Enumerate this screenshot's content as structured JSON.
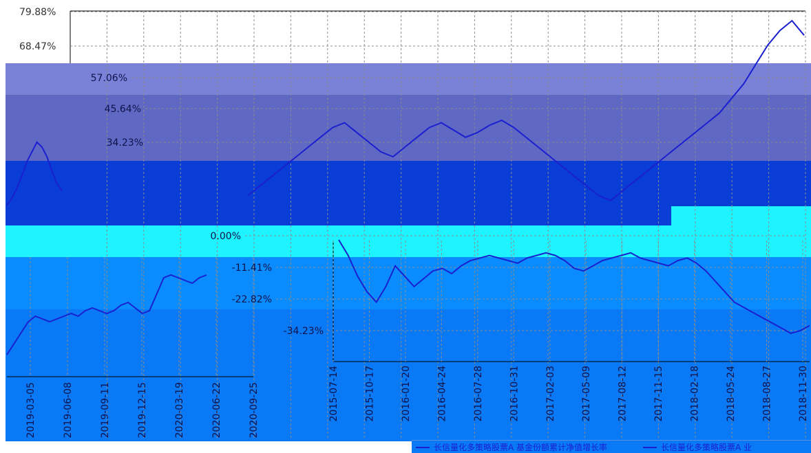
{
  "colors": {
    "background": "#ffffff",
    "grid": "#8c8c8c",
    "axis": "#000000",
    "series_line": "#1a1fd0",
    "band_lavender": "#7a82d8",
    "band_slate": "#5f69c4",
    "band_royal": "#0a3cd6",
    "band_cyan": "#1ff3ff",
    "band_azure": "#0a8cff",
    "band_skyblue": "#0a79f5"
  },
  "chart_data": [
    {
      "type": "line",
      "panel": "top",
      "title": "",
      "xlabel": "",
      "ylabel": "",
      "y_tick_labels": [
        "79.88%",
        "68.47%",
        "57.06%",
        "45.64%",
        "34.23%",
        "0.00%",
        "-11.41%",
        "-22.82%",
        "-34.23%"
      ],
      "y_tick_values": [
        79.88,
        68.47,
        57.06,
        45.64,
        34.23,
        0.0,
        -11.41,
        -22.82,
        -34.23
      ],
      "ylim": [
        -40,
        82
      ],
      "grid": true,
      "series": [
        {
          "values": [
            0,
            3,
            7,
            12,
            18,
            22,
            26,
            24,
            20,
            14,
            9,
            6,
            4,
            8,
            12,
            16,
            20,
            24,
            28,
            32,
            34,
            30,
            26,
            22,
            20,
            24,
            28,
            32,
            34,
            31,
            28,
            30,
            33,
            35,
            32,
            28,
            24,
            20,
            16,
            12,
            8,
            4,
            2,
            6,
            10,
            14,
            18,
            22,
            26,
            30,
            34,
            38,
            44,
            50,
            58,
            66,
            72,
            76,
            70
          ]
        }
      ]
    },
    {
      "type": "line",
      "panel": "bottom-right",
      "title": "",
      "xlabel": "",
      "ylabel": "",
      "x_tick_labels": [
        "2015-07-14",
        "2015-10-17",
        "2016-01-20",
        "2016-04-24",
        "2016-07-28",
        "2016-10-31",
        "2017-02-03",
        "2017-05-09",
        "2017-08-12",
        "2017-11-15",
        "2018-02-18",
        "2018-05-24",
        "2018-08-27",
        "2018-11-30"
      ],
      "grid": true,
      "series": [
        {
          "values": [
            0,
            -6,
            -14,
            -20,
            -24,
            -18,
            -10,
            -14,
            -18,
            -15,
            -12,
            -11,
            -13,
            -10,
            -8,
            -7,
            -6,
            -7,
            -8,
            -9,
            -7,
            -6,
            -5,
            -6,
            -8,
            -11,
            -12,
            -10,
            -8,
            -7,
            -6,
            -5,
            -7,
            -8,
            -9,
            -10,
            -8,
            -7,
            -9,
            -12,
            -16,
            -20,
            -24,
            -26,
            -28,
            -30,
            -32,
            -34,
            -36,
            -35,
            -33
          ]
        }
      ]
    },
    {
      "type": "line",
      "panel": "bottom-left",
      "title": "",
      "xlabel": "",
      "ylabel": "",
      "x_tick_labels": [
        "2019-03-05",
        "2019-06-08",
        "2019-09-11",
        "2019-12-15",
        "2020-03-19",
        "2020-06-22",
        "2020-09-25"
      ],
      "grid": true,
      "series": [
        {
          "values": [
            -34,
            -30,
            -26,
            -22,
            -20,
            -21,
            -22,
            -21,
            -20,
            -19,
            -20,
            -18,
            -17,
            -18,
            -19,
            -18,
            -16,
            -15,
            -17,
            -19,
            -18,
            -12,
            -6,
            -5,
            -6,
            -7,
            -8,
            -6,
            -5
          ]
        }
      ]
    }
  ],
  "legend": {
    "entry_1": "长信量化多策略股票A 基金份额累计净值增长率",
    "entry_2": "长信量化多策略股票A 业"
  }
}
